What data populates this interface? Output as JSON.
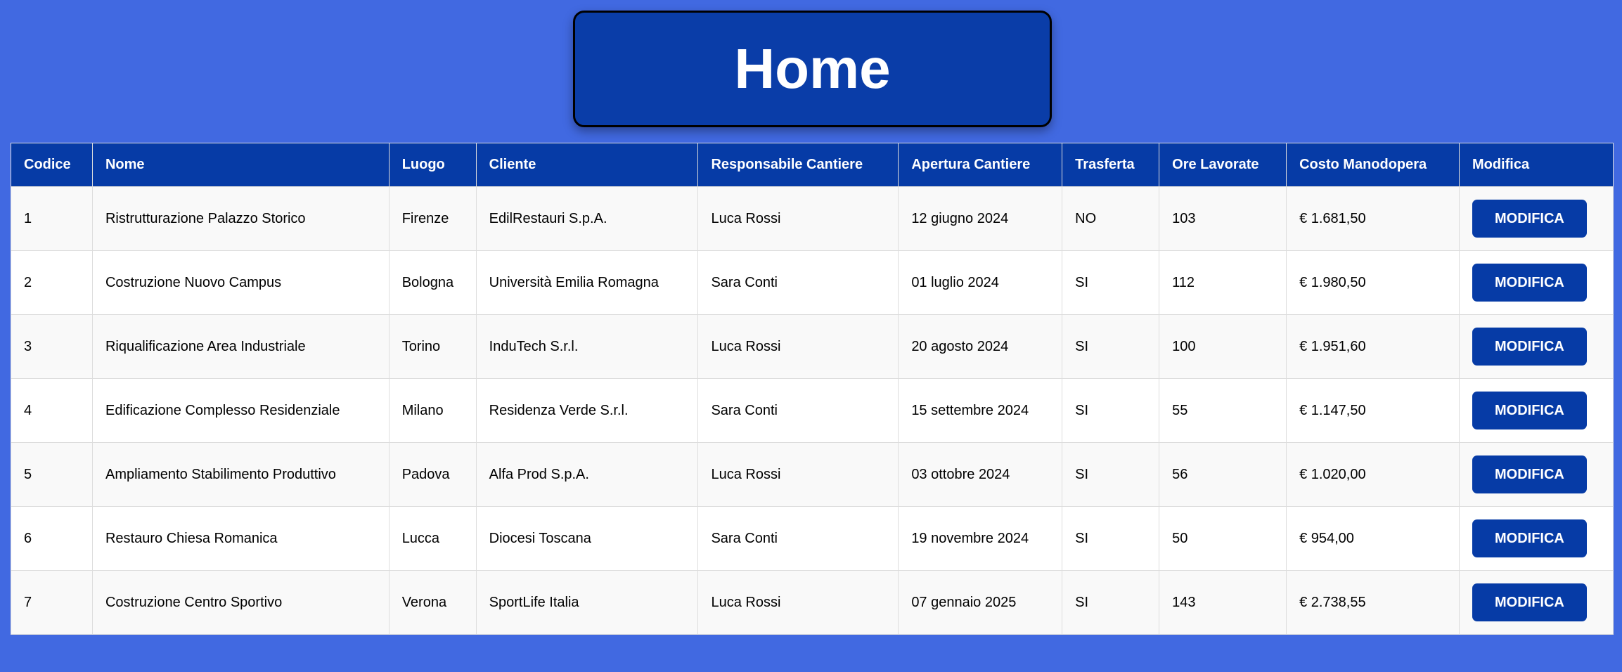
{
  "header": {
    "title": "Home"
  },
  "colors": {
    "background": "#4169e1",
    "header": "#063ba6",
    "button": "#063ba6"
  },
  "table": {
    "columns": [
      "Codice",
      "Nome",
      "Luogo",
      "Cliente",
      "Responsabile Cantiere",
      "Apertura Cantiere",
      "Trasferta",
      "Ore Lavorate",
      "Costo Manodopera",
      "Modifica"
    ],
    "button_label": "MODIFICA",
    "rows": [
      [
        "1",
        "Ristrutturazione Palazzo Storico",
        "Firenze",
        "EdilRestauri S.p.A.",
        "Luca Rossi",
        "12 giugno 2024",
        "NO",
        "103",
        "€ 1.681,50"
      ],
      [
        "2",
        "Costruzione Nuovo Campus",
        "Bologna",
        "Università Emilia Romagna",
        "Sara Conti",
        "01 luglio 2024",
        "SI",
        "112",
        "€ 1.980,50"
      ],
      [
        "3",
        "Riqualificazione Area Industriale",
        "Torino",
        "InduTech S.r.l.",
        "Luca Rossi",
        "20 agosto 2024",
        "SI",
        "100",
        "€ 1.951,60"
      ],
      [
        "4",
        "Edificazione Complesso Residenziale",
        "Milano",
        "Residenza Verde S.r.l.",
        "Sara Conti",
        "15 settembre 2024",
        "SI",
        "55",
        "€ 1.147,50"
      ],
      [
        "5",
        "Ampliamento Stabilimento Produttivo",
        "Padova",
        "Alfa Prod S.p.A.",
        "Luca Rossi",
        "03 ottobre 2024",
        "SI",
        "56",
        "€ 1.020,00"
      ],
      [
        "6",
        "Restauro Chiesa Romanica",
        "Lucca",
        "Diocesi Toscana",
        "Sara Conti",
        "19 novembre 2024",
        "SI",
        "50",
        "€ 954,00"
      ],
      [
        "7",
        "Costruzione Centro Sportivo",
        "Verona",
        "SportLife Italia",
        "Luca Rossi",
        "07 gennaio 2025",
        "SI",
        "143",
        "€ 2.738,55"
      ]
    ]
  }
}
